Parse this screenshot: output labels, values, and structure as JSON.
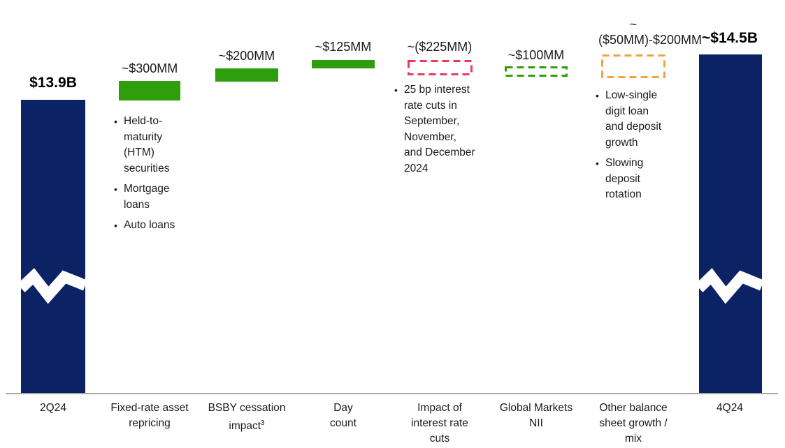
{
  "chart_data": {
    "type": "waterfall",
    "unit": "USD",
    "axis": {
      "baseline": "x-axis",
      "grid": false,
      "legend": false,
      "bars_have_axis_break": [
        "2Q24",
        "4Q24"
      ]
    },
    "colors": {
      "navy": "#0b2365",
      "green": "#2e9e0c",
      "red": "#e73b5c",
      "amber": "#f2a43c",
      "axis_line": "#a8a8a8",
      "text": "#1b1b1b"
    },
    "columns": [
      {
        "category": "2Q24",
        "value_label": "$13.9B",
        "value_mm": 13900,
        "role": "start-total",
        "bar_style": "solid",
        "bar_color": "#0b2365",
        "bullets": []
      },
      {
        "category": "Fixed-rate asset repricing",
        "value_label": "~$300MM",
        "value_mm": 300,
        "role": "increase",
        "bar_style": "solid",
        "bar_color": "#2e9e0c",
        "bullets": [
          "Held-to-maturity (HTM) securities",
          "Mortgage loans",
          "Auto loans"
        ]
      },
      {
        "category": "BSBY cessation impact",
        "category_sup": "3",
        "value_label": "~$200MM",
        "value_mm": 200,
        "role": "increase",
        "bar_style": "solid",
        "bar_color": "#2e9e0c",
        "bullets": []
      },
      {
        "category": "Day count",
        "value_label": "~$125MM",
        "value_mm": 125,
        "role": "increase",
        "bar_style": "solid",
        "bar_color": "#2e9e0c",
        "bullets": []
      },
      {
        "category": "Impact of interest rate cuts",
        "value_label": "~($225MM)",
        "value_mm": -225,
        "role": "decrease",
        "bar_style": "dashed",
        "bar_color": "#e73b5c",
        "bullets": [
          "25 bp interest rate cuts in September, November, and December 2024"
        ]
      },
      {
        "category": "Global Markets NII",
        "value_label": "~$100MM",
        "value_mm": 100,
        "role": "increase",
        "bar_style": "dashed",
        "bar_color": "#2e9e0c",
        "bullets": []
      },
      {
        "category": "Other balance sheet growth / mix",
        "value_label": "~($50MM)-$200MM",
        "value_mm_range": [
          -50,
          200
        ],
        "role": "range",
        "bar_style": "dashed",
        "bar_color": "#f2a43c",
        "bullets": [
          "Low-single digit loan and deposit growth",
          "Slowing deposit rotation"
        ]
      },
      {
        "category": "4Q24",
        "value_label": "~$14.5B",
        "value_mm": 14500,
        "role": "end-total",
        "bar_style": "solid",
        "bar_color": "#0b2365",
        "bullets": []
      }
    ]
  }
}
